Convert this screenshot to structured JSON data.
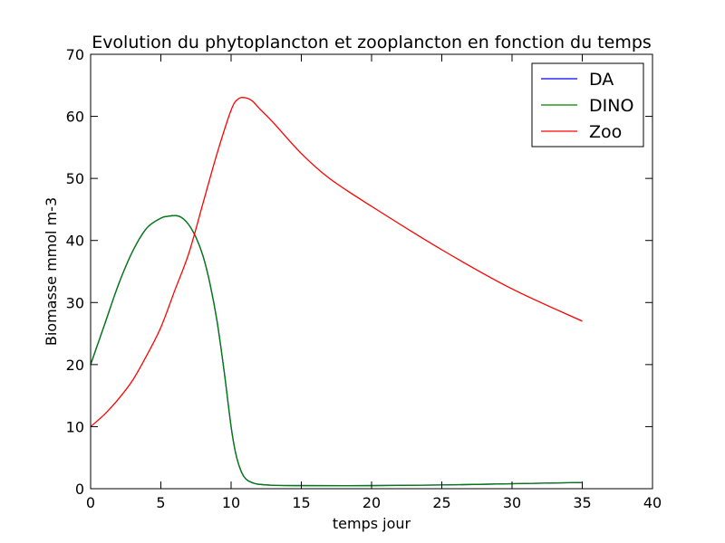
{
  "chart_data": {
    "type": "line",
    "title": "Evolution du phytoplancton et zooplancton en fonction du temps",
    "xlabel": "temps jour",
    "ylabel": "Biomasse mmol m-3",
    "xlim": [
      0,
      40
    ],
    "ylim": [
      0,
      70
    ],
    "xticks": [
      "0",
      "5",
      "10",
      "15",
      "20",
      "25",
      "30",
      "35",
      "40"
    ],
    "yticks": [
      "0",
      "10",
      "20",
      "30",
      "40",
      "50",
      "60",
      "70"
    ],
    "grid": false,
    "legend_position": "top-right",
    "series": [
      {
        "name": "DA",
        "color": "#0000ff",
        "x": [
          0,
          1,
          2,
          3,
          4,
          5,
          5.5,
          6,
          6.3,
          6.6,
          7,
          7.5,
          8,
          8.5,
          9,
          9.5,
          10,
          10.3,
          10.6,
          10.9,
          11.2,
          11.6,
          12,
          13,
          15,
          20,
          25,
          30,
          35
        ],
        "y": [
          20,
          26.5,
          33,
          38.3,
          42,
          43.6,
          43.9,
          44,
          43.9,
          43.5,
          42.5,
          40.5,
          37.5,
          33,
          27,
          19,
          10,
          6,
          3.5,
          2,
          1.3,
          0.9,
          0.7,
          0.55,
          0.5,
          0.5,
          0.6,
          0.8,
          1
        ]
      },
      {
        "name": "DINO",
        "color": "#008000",
        "x": [
          0,
          1,
          2,
          3,
          4,
          5,
          5.5,
          6,
          6.3,
          6.6,
          7,
          7.5,
          8,
          8.5,
          9,
          9.5,
          10,
          10.3,
          10.6,
          10.9,
          11.2,
          11.6,
          12,
          13,
          15,
          20,
          25,
          30,
          35
        ],
        "y": [
          20,
          26.5,
          33,
          38.3,
          42,
          43.6,
          43.9,
          44,
          43.9,
          43.5,
          42.5,
          40.5,
          37.5,
          33,
          27,
          19,
          10,
          6,
          3.5,
          2,
          1.3,
          0.9,
          0.7,
          0.55,
          0.5,
          0.5,
          0.6,
          0.8,
          1
        ]
      },
      {
        "name": "Zoo",
        "color": "#ff0000",
        "x": [
          0,
          1,
          2,
          3,
          4,
          5,
          6,
          7,
          8,
          9,
          10,
          10.5,
          11,
          11.5,
          12,
          13,
          15,
          17,
          20,
          25,
          30,
          35
        ],
        "y": [
          10,
          12,
          14.5,
          17.5,
          21.5,
          26,
          32,
          38,
          46,
          54,
          61,
          62.8,
          63,
          62.5,
          61.3,
          59,
          54,
          50,
          45.5,
          38.5,
          32.2,
          27
        ]
      }
    ]
  }
}
